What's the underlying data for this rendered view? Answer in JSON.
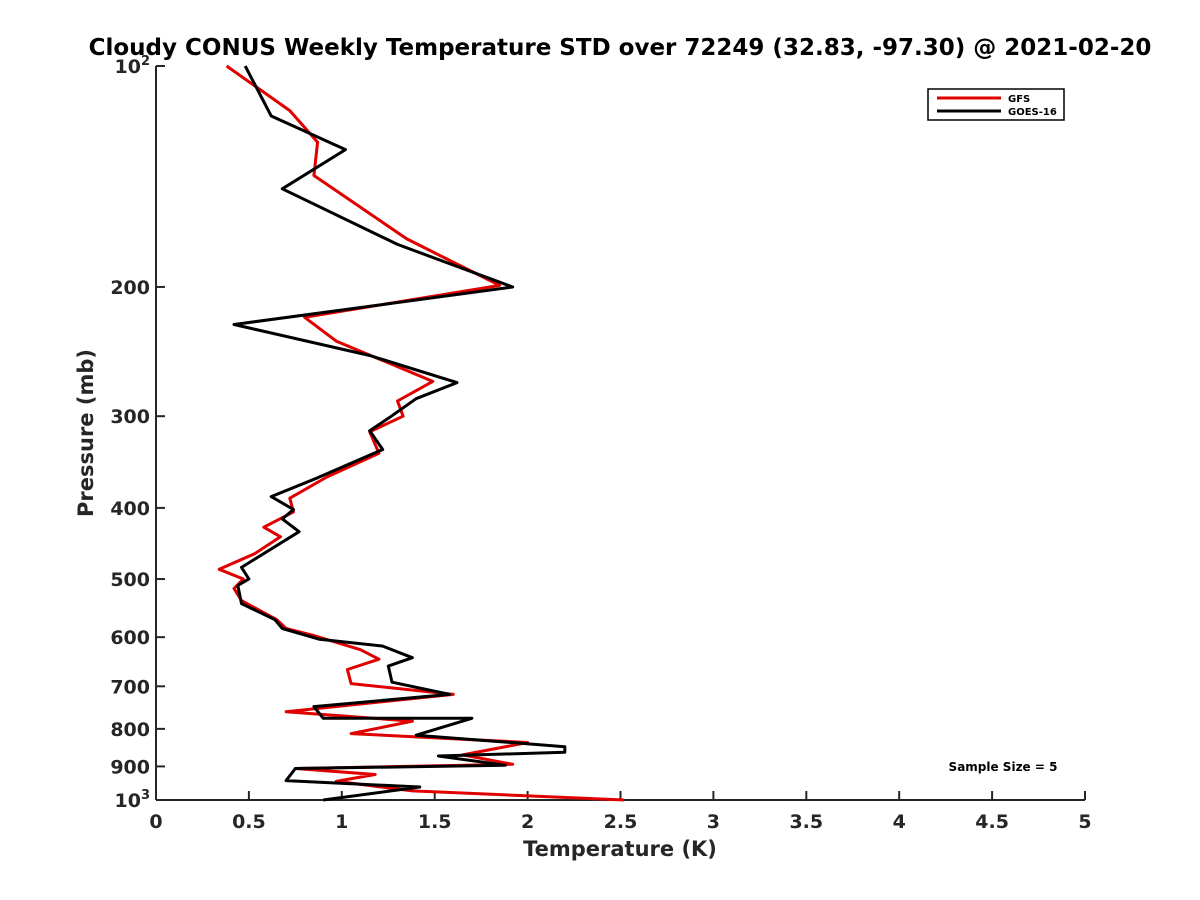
{
  "chart_data": {
    "type": "line",
    "title": "Cloudy CONUS Weekly Temperature STD over 72249 (32.83, -97.30) @ 2021-02-20",
    "xlabel": "Temperature (K)",
    "ylabel": "Pressure (mb)",
    "xlim": [
      0,
      5
    ],
    "ylim": [
      100,
      1000
    ],
    "y_scale": "log",
    "y_reversed": true,
    "x_ticks": [
      0,
      0.5,
      1,
      1.5,
      2,
      2.5,
      3,
      3.5,
      4,
      4.5,
      5
    ],
    "x_tick_labels": [
      "0",
      "0.5",
      "1",
      "1.5",
      "2",
      "2.5",
      "3",
      "3.5",
      "4",
      "4.5",
      "5"
    ],
    "y_ticks": [
      100,
      200,
      300,
      400,
      500,
      600,
      700,
      800,
      900,
      1000
    ],
    "y_tick_labels": [
      {
        "base": "10",
        "exp": "2"
      },
      {
        "base": "200",
        "exp": ""
      },
      {
        "base": "300",
        "exp": ""
      },
      {
        "base": "400",
        "exp": ""
      },
      {
        "base": "500",
        "exp": ""
      },
      {
        "base": "600",
        "exp": ""
      },
      {
        "base": "700",
        "exp": ""
      },
      {
        "base": "800",
        "exp": ""
      },
      {
        "base": "900",
        "exp": ""
      },
      {
        "base": "10",
        "exp": "3"
      }
    ],
    "grid": false,
    "legend_position": "top-right",
    "annotation": "Sample Size = 5",
    "series": [
      {
        "name": "GFS",
        "color": "#e00000",
        "points": [
          [
            0.38,
            100
          ],
          [
            0.72,
            115
          ],
          [
            0.87,
            127
          ],
          [
            0.85,
            141
          ],
          [
            1.35,
            172
          ],
          [
            1.85,
            199
          ],
          [
            0.8,
            220
          ],
          [
            0.97,
            237
          ],
          [
            1.49,
            269
          ],
          [
            1.3,
            286
          ],
          [
            1.33,
            300
          ],
          [
            1.15,
            315
          ],
          [
            1.2,
            337
          ],
          [
            0.92,
            363
          ],
          [
            0.72,
            388
          ],
          [
            0.74,
            405
          ],
          [
            0.58,
            425
          ],
          [
            0.67,
            438
          ],
          [
            0.53,
            462
          ],
          [
            0.34,
            485
          ],
          [
            0.47,
            500
          ],
          [
            0.42,
            515
          ],
          [
            0.46,
            535
          ],
          [
            0.65,
            568
          ],
          [
            0.7,
            584
          ],
          [
            0.85,
            597
          ],
          [
            1.1,
            624
          ],
          [
            1.2,
            643
          ],
          [
            1.03,
            664
          ],
          [
            1.05,
            694
          ],
          [
            1.6,
            718
          ],
          [
            0.7,
            758
          ],
          [
            1.38,
            781
          ],
          [
            1.05,
            812
          ],
          [
            2.0,
            835
          ],
          [
            1.65,
            868
          ],
          [
            1.92,
            894
          ],
          [
            0.75,
            906
          ],
          [
            1.18,
            923
          ],
          [
            0.97,
            943
          ],
          [
            1.38,
            972
          ],
          [
            2.52,
            1000
          ]
        ]
      },
      {
        "name": "GOES-16",
        "color": "#000000",
        "points": [
          [
            0.48,
            100
          ],
          [
            0.62,
            117
          ],
          [
            1.02,
            130
          ],
          [
            0.68,
            147
          ],
          [
            1.3,
            175
          ],
          [
            1.92,
            200
          ],
          [
            0.42,
            225
          ],
          [
            1.15,
            248
          ],
          [
            1.62,
            270
          ],
          [
            1.4,
            284
          ],
          [
            1.25,
            302
          ],
          [
            1.15,
            314
          ],
          [
            1.22,
            333
          ],
          [
            0.87,
            364
          ],
          [
            0.62,
            386
          ],
          [
            0.74,
            402
          ],
          [
            0.68,
            414
          ],
          [
            0.77,
            431
          ],
          [
            0.46,
            482
          ],
          [
            0.5,
            500
          ],
          [
            0.44,
            510
          ],
          [
            0.46,
            540
          ],
          [
            0.64,
            568
          ],
          [
            0.68,
            584
          ],
          [
            0.88,
            604
          ],
          [
            1.22,
            617
          ],
          [
            1.38,
            640
          ],
          [
            1.25,
            657
          ],
          [
            1.27,
            691
          ],
          [
            1.58,
            718
          ],
          [
            0.85,
            746
          ],
          [
            0.9,
            774
          ],
          [
            1.7,
            774
          ],
          [
            1.4,
            816
          ],
          [
            2.2,
            846
          ],
          [
            2.2,
            861
          ],
          [
            1.52,
            871
          ],
          [
            1.88,
            897
          ],
          [
            0.75,
            906
          ],
          [
            0.7,
            941
          ],
          [
            1.42,
            960
          ],
          [
            0.9,
            1000
          ]
        ]
      }
    ]
  }
}
